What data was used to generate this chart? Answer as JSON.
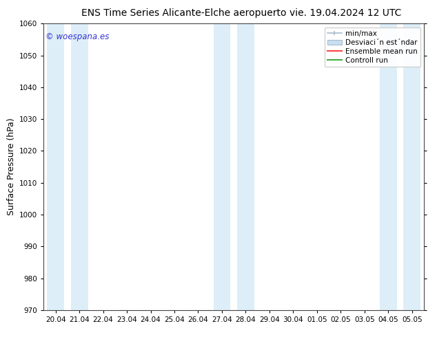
{
  "title_left": "ENS Time Series Alicante-Elche aeropuerto",
  "title_right": "vie. 19.04.2024 12 UTC",
  "ylabel": "Surface Pressure (hPa)",
  "ylim": [
    970,
    1060
  ],
  "yticks": [
    970,
    980,
    990,
    1000,
    1010,
    1020,
    1030,
    1040,
    1050,
    1060
  ],
  "x_labels": [
    "20.04",
    "21.04",
    "22.04",
    "23.04",
    "24.04",
    "25.04",
    "26.04",
    "27.04",
    "28.04",
    "29.04",
    "30.04",
    "01.05",
    "02.05",
    "03.05",
    "04.05",
    "05.05"
  ],
  "bg_color": "#ffffff",
  "stripe_color": "#ddeef8",
  "stripe_indices": [
    0,
    1,
    7,
    8,
    14,
    15
  ],
  "watermark": "© woespana.es",
  "watermark_color": "#3333cc",
  "legend_label_minmax": "min/max",
  "legend_label_std": "Desviaci´n est´ndar",
  "legend_label_ens": "Ensemble mean run",
  "legend_label_ctrl": "Controll run",
  "legend_color_fill": "#c8dff0",
  "legend_color_line": "#aabbcc",
  "legend_color_ens": "#ff4444",
  "legend_color_ctrl": "#44aa44",
  "title_fontsize": 10,
  "tick_fontsize": 7.5,
  "ylabel_fontsize": 9,
  "legend_fontsize": 7.5
}
